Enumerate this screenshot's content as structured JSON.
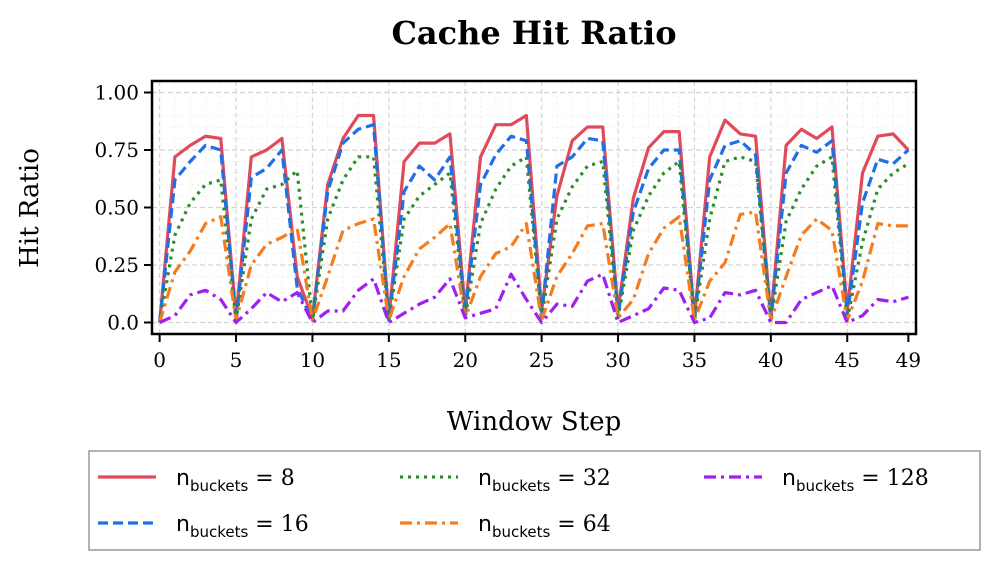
{
  "chart_data": {
    "type": "line",
    "title": "Cache Hit Ratio",
    "xlabel": "Window Step",
    "ylabel": "Hit Ratio",
    "xlim": [
      -0.5,
      49.5
    ],
    "ylim": [
      -0.05,
      1.05
    ],
    "xticks": [
      0,
      5,
      10,
      15,
      20,
      25,
      30,
      35,
      40,
      45,
      49
    ],
    "yticks": [
      0.0,
      0.25,
      0.5,
      0.75,
      1.0
    ],
    "ytick_labels": [
      "0.0",
      "0.25",
      "0.50",
      "0.75",
      "1.00"
    ],
    "grid": true,
    "legend_placement": "below plot, 3 columns",
    "x": [
      0,
      1,
      2,
      3,
      4,
      5,
      6,
      7,
      8,
      9,
      10,
      11,
      12,
      13,
      14,
      15,
      16,
      17,
      18,
      19,
      20,
      21,
      22,
      23,
      24,
      25,
      26,
      27,
      28,
      29,
      30,
      31,
      32,
      33,
      34,
      35,
      36,
      37,
      38,
      39,
      40,
      41,
      42,
      43,
      44,
      45,
      46,
      47,
      48,
      49
    ],
    "series": [
      {
        "legend_prefix": "n",
        "legend_sub": "buckets",
        "legend_value": "= 8",
        "color": "#e04a5a",
        "dash": "solid",
        "values": [
          0.0,
          0.72,
          0.77,
          0.81,
          0.8,
          0.02,
          0.72,
          0.75,
          0.8,
          0.2,
          0.02,
          0.6,
          0.8,
          0.9,
          0.9,
          0.02,
          0.7,
          0.78,
          0.78,
          0.82,
          0.05,
          0.72,
          0.86,
          0.86,
          0.9,
          0.05,
          0.55,
          0.79,
          0.85,
          0.85,
          0.05,
          0.54,
          0.76,
          0.83,
          0.83,
          0.02,
          0.72,
          0.88,
          0.82,
          0.81,
          0.02,
          0.77,
          0.84,
          0.8,
          0.85,
          0.05,
          0.65,
          0.81,
          0.82,
          0.75
        ]
      },
      {
        "legend_prefix": "n",
        "legend_sub": "buckets",
        "legend_value": "= 16",
        "color": "#1f6fe5",
        "dash": "dashed",
        "values": [
          0.0,
          0.62,
          0.7,
          0.77,
          0.75,
          0.01,
          0.63,
          0.67,
          0.75,
          0.15,
          0.01,
          0.57,
          0.78,
          0.84,
          0.86,
          0.01,
          0.57,
          0.68,
          0.62,
          0.72,
          0.04,
          0.6,
          0.73,
          0.81,
          0.79,
          0.03,
          0.68,
          0.72,
          0.8,
          0.79,
          0.03,
          0.48,
          0.67,
          0.75,
          0.75,
          0.01,
          0.62,
          0.77,
          0.79,
          0.73,
          0.01,
          0.65,
          0.77,
          0.74,
          0.79,
          0.03,
          0.52,
          0.71,
          0.69,
          0.75
        ]
      },
      {
        "legend_prefix": "n",
        "legend_sub": "buckets",
        "legend_value": "= 32",
        "color": "#2e8b2e",
        "dash": "dotted",
        "values": [
          0.0,
          0.38,
          0.52,
          0.6,
          0.62,
          0.01,
          0.45,
          0.58,
          0.6,
          0.66,
          0.01,
          0.45,
          0.62,
          0.72,
          0.72,
          0.01,
          0.45,
          0.55,
          0.6,
          0.65,
          0.02,
          0.43,
          0.58,
          0.68,
          0.72,
          0.02,
          0.45,
          0.59,
          0.68,
          0.7,
          0.02,
          0.4,
          0.55,
          0.65,
          0.7,
          0.01,
          0.45,
          0.7,
          0.72,
          0.7,
          0.01,
          0.44,
          0.58,
          0.68,
          0.72,
          0.01,
          0.35,
          0.58,
          0.65,
          0.69
        ]
      },
      {
        "legend_prefix": "n",
        "legend_sub": "buckets",
        "legend_value": "= 64",
        "color": "#f57c1f",
        "dash": "dashdot",
        "values": [
          0.0,
          0.22,
          0.31,
          0.43,
          0.46,
          0.01,
          0.25,
          0.34,
          0.37,
          0.41,
          0.01,
          0.2,
          0.4,
          0.43,
          0.45,
          0.01,
          0.2,
          0.32,
          0.37,
          0.43,
          0.02,
          0.2,
          0.3,
          0.33,
          0.43,
          0.01,
          0.2,
          0.3,
          0.42,
          0.43,
          0.02,
          0.1,
          0.3,
          0.41,
          0.46,
          0.01,
          0.18,
          0.26,
          0.47,
          0.48,
          0.01,
          0.2,
          0.38,
          0.45,
          0.4,
          0.01,
          0.18,
          0.43,
          0.42,
          0.42
        ]
      },
      {
        "legend_prefix": "n",
        "legend_sub": "buckets",
        "legend_value": "= 128",
        "color": "#a020f0",
        "dash": "dashdot",
        "values": [
          0.0,
          0.03,
          0.12,
          0.14,
          0.1,
          0.0,
          0.06,
          0.13,
          0.09,
          0.13,
          0.0,
          0.05,
          0.05,
          0.14,
          0.19,
          0.0,
          0.04,
          0.08,
          0.11,
          0.19,
          0.02,
          0.04,
          0.06,
          0.21,
          0.1,
          0.0,
          0.08,
          0.07,
          0.18,
          0.21,
          0.0,
          0.03,
          0.06,
          0.15,
          0.14,
          0.0,
          0.02,
          0.13,
          0.12,
          0.14,
          0.0,
          0.0,
          0.1,
          0.13,
          0.16,
          0.0,
          0.03,
          0.1,
          0.09,
          0.11
        ]
      }
    ]
  }
}
